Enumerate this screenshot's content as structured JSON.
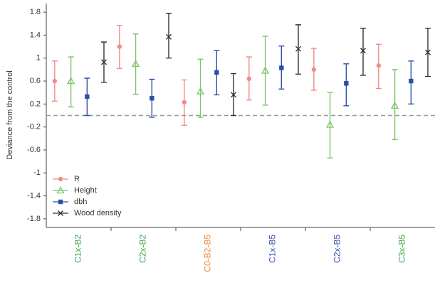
{
  "chart_data": {
    "type": "errorbar",
    "ylabel": "Deviance from the control",
    "categories": [
      "C1x-B2",
      "C2x-B2",
      "C0-B2-B5",
      "C1x-B5",
      "C2x-B5",
      "C3x-B5"
    ],
    "category_colors": [
      "#3fa84a",
      "#3fa84a",
      "#f08a3c",
      "#3a4fb0",
      "#3a4fb0",
      "#3fa84a"
    ],
    "series": [
      {
        "name": "R",
        "color": "#f28b86",
        "marker": "circle",
        "values": [
          0.6,
          1.2,
          0.23,
          0.64,
          0.8,
          0.87
        ],
        "lower": [
          0.25,
          0.82,
          -0.17,
          0.27,
          0.44,
          0.47
        ],
        "upper": [
          0.95,
          1.57,
          0.62,
          1.02,
          1.17,
          1.24
        ]
      },
      {
        "name": "Height",
        "color": "#7cc46a",
        "marker": "triangle",
        "values": [
          0.6,
          0.9,
          0.42,
          0.78,
          -0.16,
          0.17
        ],
        "lower": [
          0.15,
          0.37,
          -0.03,
          0.18,
          -0.74,
          -0.42
        ],
        "upper": [
          1.02,
          1.42,
          0.98,
          1.38,
          0.4,
          0.8
        ]
      },
      {
        "name": "dbh",
        "color": "#2a4fa8",
        "marker": "square",
        "values": [
          0.33,
          0.3,
          0.75,
          0.83,
          0.56,
          0.6
        ],
        "lower": [
          0.0,
          -0.03,
          0.36,
          0.46,
          0.17,
          0.2
        ],
        "upper": [
          0.65,
          0.63,
          1.13,
          1.21,
          0.9,
          0.95
        ]
      },
      {
        "name": "Wood density",
        "color": "#333333",
        "marker": "x",
        "values": [
          0.93,
          1.37,
          0.36,
          1.16,
          1.13,
          1.1
        ],
        "lower": [
          0.58,
          1.0,
          0.0,
          0.72,
          0.7,
          0.68
        ],
        "upper": [
          1.28,
          1.78,
          0.73,
          1.58,
          1.52,
          1.52
        ]
      }
    ],
    "ylim": [
      -1.95,
      1.95
    ],
    "yticks": [
      1.8,
      1.4,
      1,
      0.6,
      0.2,
      -0.2,
      -0.6,
      -1,
      -1.4,
      -1.8
    ],
    "reference_line": 0,
    "legend": "lower-left"
  }
}
